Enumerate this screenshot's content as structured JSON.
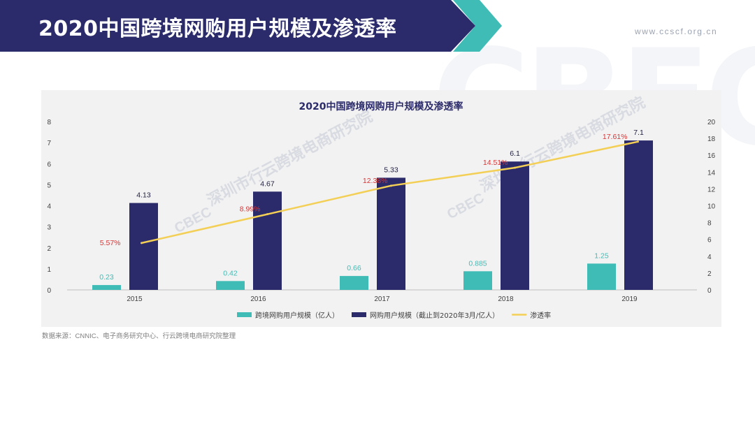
{
  "header": {
    "title": "2020中国跨境网购用户规模及渗透率",
    "url": "www.ccscf.org.cn",
    "colors": {
      "navy": "#2b2a6a",
      "teal": "#3fbcb5"
    }
  },
  "watermark": {
    "logo": "CBEC",
    "institute": "深圳市行云跨境电商研究院"
  },
  "chart_data": {
    "type": "bar",
    "title": "2020中国跨境网购用户规模及渗透率",
    "categories": [
      "2015",
      "2016",
      "2017",
      "2018",
      "2019"
    ],
    "series": [
      {
        "name": "跨境网购用户规模（亿人）",
        "kind": "bar",
        "axis": "left",
        "color": "#3fbcb5",
        "values": [
          0.23,
          0.42,
          0.66,
          0.885,
          1.25
        ],
        "labels": [
          "0.23",
          "0.42",
          "0.66",
          "0.885",
          "1.25"
        ]
      },
      {
        "name": "网购用户规模（截止到2020年3月/亿人）",
        "kind": "bar",
        "axis": "left",
        "color": "#2b2a6a",
        "values": [
          4.13,
          4.67,
          5.33,
          6.1,
          7.1
        ],
        "labels": [
          "4.13",
          "4.67",
          "5.33",
          "6.1",
          "7.1"
        ]
      },
      {
        "name": "渗透率",
        "kind": "line",
        "axis": "right",
        "color": "#f3cf55",
        "values": [
          5.57,
          8.99,
          12.38,
          14.51,
          17.61
        ],
        "labels": [
          "5.57%",
          "8.99%",
          "12.38%",
          "14.51%",
          "17.61%"
        ]
      }
    ],
    "y_left": {
      "min": 0,
      "max": 8,
      "ticks": [
        "0",
        "1",
        "2",
        "3",
        "4",
        "5",
        "6",
        "7",
        "8"
      ]
    },
    "y_right": {
      "min": 0,
      "max": 20,
      "ticks": [
        "0",
        "2",
        "4",
        "6",
        "8",
        "10",
        "12",
        "14",
        "16",
        "18",
        "20"
      ]
    },
    "grid": false,
    "legend_position": "bottom"
  },
  "footer": {
    "source": "数据来源：CNNIC、电子商务研究中心、行云跨境电商研究院整理"
  }
}
